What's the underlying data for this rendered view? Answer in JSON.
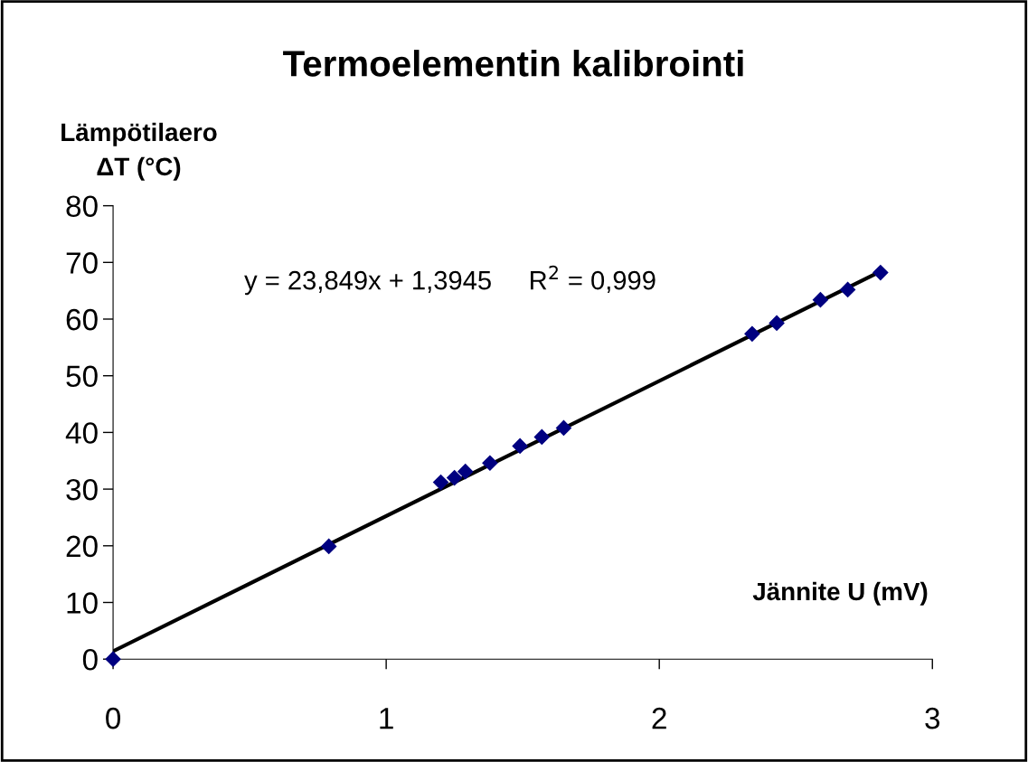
{
  "chart_data": {
    "type": "scatter",
    "title": "Termoelementin kalibrointi",
    "xlabel": "Jännite U (mV)",
    "ylabel": "Lämpötilaero\nΔT (°C)",
    "annotations": [
      "y = 23,849x + 1,3945     R$^{2}$ = 0,999"
    ],
    "xlim": [
      0,
      3
    ],
    "xticks": [
      0,
      1,
      2,
      3
    ],
    "ylim": [
      0,
      80
    ],
    "yticks": [
      0,
      10,
      20,
      30,
      40,
      50,
      60,
      70,
      80
    ],
    "grid": false,
    "legend": false,
    "marker": "diamond",
    "series": [
      {
        "type": "scatter",
        "color": "#000080",
        "x": [
          0,
          0.79,
          1.2,
          1.25,
          1.29,
          1.38,
          1.49,
          1.57,
          1.65,
          2.34,
          2.43,
          2.59,
          2.69,
          2.81
        ],
        "values": [
          0,
          19.9,
          31.2,
          32.0,
          33.1,
          34.6,
          37.6,
          39.2,
          40.8,
          57.4,
          59.3,
          63.4,
          65.2,
          68.2
        ]
      },
      {
        "type": "line",
        "color": "#000000",
        "marker": "none",
        "x": [
          0,
          2.81
        ],
        "values": [
          1.4,
          68.4
        ]
      }
    ]
  }
}
